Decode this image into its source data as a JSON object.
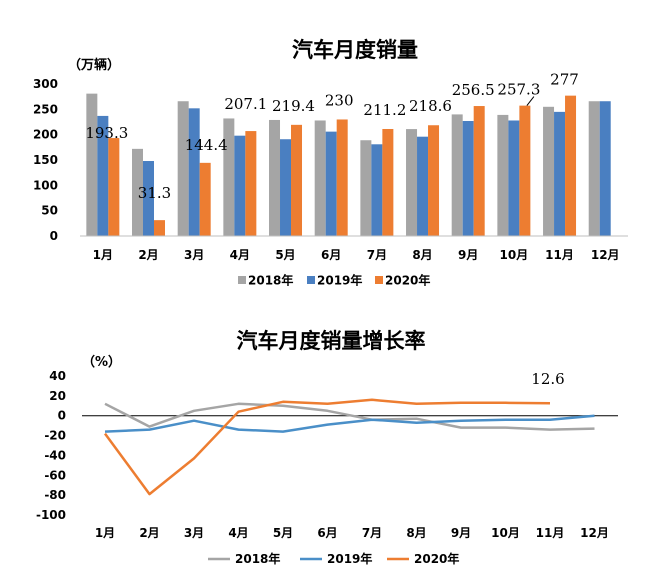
{
  "chart_data": [
    {
      "type": "bar",
      "title": "汽车月度销量",
      "ylabel": "（万辆）",
      "categories": [
        "1月",
        "2月",
        "3月",
        "4月",
        "5月",
        "6月",
        "7月",
        "8月",
        "9月",
        "10月",
        "11月",
        "12月"
      ],
      "ylim": [
        0,
        300
      ],
      "yticks": [
        "0",
        "50",
        "100",
        "150",
        "200",
        "250",
        "300"
      ],
      "grid": false,
      "legend": "bottom",
      "series": [
        {
          "name": "2018年",
          "color": "#a5a5a5",
          "values": [
            281,
            172,
            266,
            232,
            229,
            228,
            189,
            211,
            240,
            239,
            255,
            266
          ]
        },
        {
          "name": "2019年",
          "color": "#4a7fc1",
          "values": [
            237,
            148,
            252,
            198,
            191,
            206,
            181,
            196,
            227,
            228,
            245,
            266
          ]
        },
        {
          "name": "2020年",
          "color": "#ed7d31",
          "values": [
            193.3,
            31.3,
            144.4,
            207.1,
            219.4,
            230,
            211.2,
            218.6,
            256.5,
            257.3,
            277,
            null
          ]
        }
      ],
      "data_labels": [
        "193.3",
        "31.3",
        "144.4",
        "207.1",
        "219.4",
        "230",
        "211.2",
        "218.6",
        "256.5",
        "257.3",
        "277"
      ]
    },
    {
      "type": "line",
      "title": "汽车月度销量增长率",
      "ylabel": "（%）",
      "categories": [
        "1月",
        "2月",
        "3月",
        "4月",
        "5月",
        "6月",
        "7月",
        "8月",
        "9月",
        "10月",
        "11月",
        "12月"
      ],
      "ylim": [
        -100,
        40
      ],
      "yticks": [
        "40",
        "20",
        "0",
        "-20",
        "-40",
        "-60",
        "-80",
        "-100"
      ],
      "grid": false,
      "legend": "bottom",
      "series": [
        {
          "name": "2018年",
          "color": "#a5a5a5",
          "values": [
            12,
            -11,
            5,
            12,
            10,
            5,
            -4,
            -3,
            -12,
            -12,
            -14,
            -13
          ]
        },
        {
          "name": "2019年",
          "color": "#4a8fc8",
          "values": [
            -16,
            -14,
            -5,
            -14,
            -16,
            -9,
            -4,
            -7,
            -5,
            -4,
            -4,
            0
          ]
        },
        {
          "name": "2020年",
          "color": "#ed7d31",
          "values": [
            -18,
            -79,
            -43,
            4,
            14,
            12,
            16,
            12,
            13,
            13,
            12.6,
            null
          ]
        }
      ],
      "data_labels": [
        "12.6"
      ]
    }
  ]
}
